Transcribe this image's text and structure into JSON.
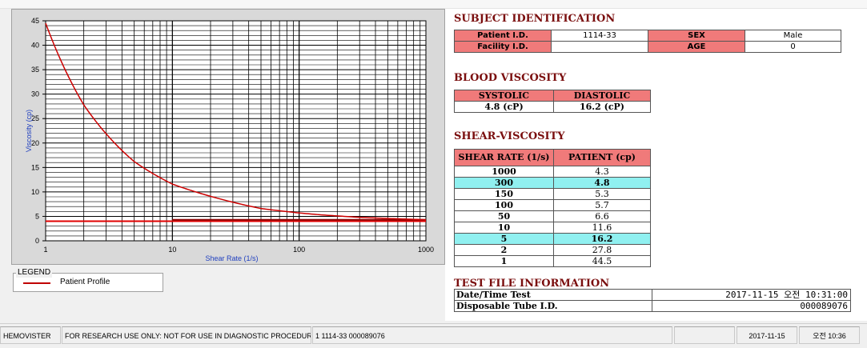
{
  "legend": {
    "title": "LEGEND",
    "series_label": "Patient Profile"
  },
  "chart_data": {
    "type": "line",
    "xlabel": "Shear Rate (1/s)",
    "ylabel": "Viscosity (cp)",
    "xscale": "log",
    "xlim": [
      1,
      1000
    ],
    "ylim": [
      0,
      45
    ],
    "x_ticks": [
      "1",
      "10",
      "100",
      "1000"
    ],
    "y_ticks": [
      "0",
      "5",
      "10",
      "15",
      "20",
      "25",
      "30",
      "35",
      "40",
      "45"
    ],
    "grid": true,
    "series": [
      {
        "name": "Patient Profile",
        "color": "#cc0000",
        "x": [
          1,
          2,
          5,
          10,
          50,
          100,
          150,
          300,
          1000
        ],
        "y": [
          44.5,
          27.8,
          16.2,
          11.6,
          6.6,
          5.7,
          5.3,
          4.8,
          4.3
        ]
      }
    ],
    "reference_lines": [
      {
        "color": "#e00000",
        "x": [
          1,
          1000
        ],
        "y": [
          4.0,
          4.0
        ]
      },
      {
        "color": "#8b0000",
        "x": [
          10,
          1000
        ],
        "y": [
          4.3,
          4.3
        ]
      }
    ]
  },
  "subject": {
    "title": "SUBJECT IDENTIFICATION",
    "patient_id_label": "Patient I.D.",
    "patient_id": "1114-33",
    "sex_label": "SEX",
    "sex": "Male",
    "facility_id_label": "Facility I.D.",
    "facility_id": "",
    "age_label": "AGE",
    "age": "0"
  },
  "blood_viscosity": {
    "title": "BLOOD VISCOSITY",
    "systolic_label": "SYSTOLIC",
    "systolic": "4.8 (cP)",
    "diastolic_label": "DIASTOLIC",
    "diastolic": "16.2 (cP)"
  },
  "shear_viscosity": {
    "title": "SHEAR-VISCOSITY",
    "col_rate": "SHEAR RATE (1/s)",
    "col_patient": "PATIENT (cp)",
    "rows": [
      {
        "rate": "1000",
        "patient": "4.3"
      },
      {
        "rate": "300",
        "patient": "4.8"
      },
      {
        "rate": "150",
        "patient": "5.3"
      },
      {
        "rate": "100",
        "patient": "5.7"
      },
      {
        "rate": "50",
        "patient": "6.6"
      },
      {
        "rate": "10",
        "patient": "11.6"
      },
      {
        "rate": "5",
        "patient": "16.2"
      },
      {
        "rate": "2",
        "patient": "27.8"
      },
      {
        "rate": "1",
        "patient": "44.5"
      }
    ]
  },
  "test_file": {
    "title": "TEST FILE INFORMATION",
    "date_label": "Date/Time Test",
    "date_value": "2017-11-15  오전 10:31:00",
    "tube_label": "Disposable Tube I.D.",
    "tube_value": "000089076"
  },
  "status_bar": {
    "app": "HEMOVISTER",
    "notice": "FOR RESEARCH USE ONLY: NOT FOR USE IN DIAGNOSTIC PROCEDURES",
    "record": "1  1114-33  000089076",
    "empty": "",
    "date": "2017-11-15",
    "time": "오전 10:36"
  }
}
